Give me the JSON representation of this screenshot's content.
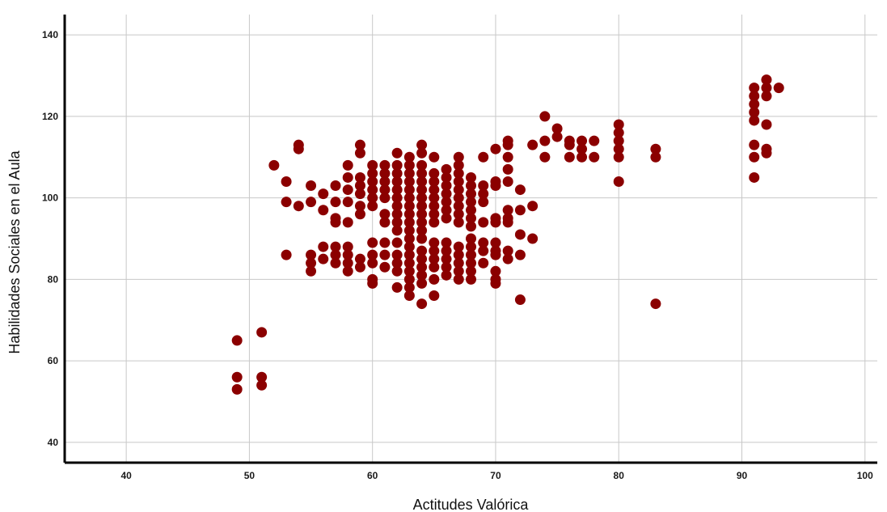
{
  "chart_data": {
    "type": "scatter",
    "title": "",
    "xlabel": "Actitudes Valórica",
    "ylabel": "Habilidades Sociales en el Aula",
    "xlim": [
      35,
      101
    ],
    "ylim": [
      35,
      145
    ],
    "xticks": [
      40,
      50,
      60,
      70,
      80,
      90,
      100
    ],
    "yticks": [
      40,
      60,
      80,
      100,
      120,
      140
    ],
    "grid": true,
    "legend": "none",
    "marker_color": "#8b0000",
    "series": [
      {
        "points": [
          [
            49,
            65
          ],
          [
            49,
            56
          ],
          [
            49,
            53
          ],
          [
            51,
            67
          ],
          [
            51,
            56
          ],
          [
            51,
            54
          ],
          [
            52,
            108
          ],
          [
            53,
            104
          ],
          [
            53,
            99
          ],
          [
            53,
            86
          ],
          [
            54,
            113
          ],
          [
            54,
            112
          ],
          [
            54,
            98
          ],
          [
            55,
            103
          ],
          [
            55,
            99
          ],
          [
            55,
            86
          ],
          [
            55,
            84
          ],
          [
            55,
            82
          ],
          [
            56,
            101
          ],
          [
            56,
            97
          ],
          [
            56,
            88
          ],
          [
            56,
            85
          ],
          [
            57,
            103
          ],
          [
            57,
            99
          ],
          [
            57,
            95
          ],
          [
            57,
            94
          ],
          [
            57,
            88
          ],
          [
            57,
            86
          ],
          [
            57,
            84
          ],
          [
            58,
            108
          ],
          [
            58,
            105
          ],
          [
            58,
            102
          ],
          [
            58,
            99
          ],
          [
            58,
            94
          ],
          [
            58,
            88
          ],
          [
            58,
            86
          ],
          [
            58,
            84
          ],
          [
            58,
            82
          ],
          [
            59,
            113
          ],
          [
            59,
            111
          ],
          [
            59,
            105
          ],
          [
            59,
            103
          ],
          [
            59,
            101
          ],
          [
            59,
            98
          ],
          [
            59,
            96
          ],
          [
            59,
            85
          ],
          [
            59,
            83
          ],
          [
            60,
            108
          ],
          [
            60,
            106
          ],
          [
            60,
            104
          ],
          [
            60,
            102
          ],
          [
            60,
            100
          ],
          [
            60,
            98
          ],
          [
            60,
            89
          ],
          [
            60,
            86
          ],
          [
            60,
            84
          ],
          [
            60,
            80
          ],
          [
            60,
            79
          ],
          [
            61,
            108
          ],
          [
            61,
            106
          ],
          [
            61,
            104
          ],
          [
            61,
            102
          ],
          [
            61,
            100
          ],
          [
            61,
            96
          ],
          [
            61,
            94
          ],
          [
            61,
            89
          ],
          [
            61,
            86
          ],
          [
            61,
            83
          ],
          [
            62,
            111
          ],
          [
            62,
            108
          ],
          [
            62,
            106
          ],
          [
            62,
            104
          ],
          [
            62,
            102
          ],
          [
            62,
            100
          ],
          [
            62,
            98
          ],
          [
            62,
            96
          ],
          [
            62,
            94
          ],
          [
            62,
            92
          ],
          [
            62,
            89
          ],
          [
            62,
            86
          ],
          [
            62,
            84
          ],
          [
            62,
            82
          ],
          [
            62,
            78
          ],
          [
            63,
            110
          ],
          [
            63,
            108
          ],
          [
            63,
            106
          ],
          [
            63,
            104
          ],
          [
            63,
            102
          ],
          [
            63,
            100
          ],
          [
            63,
            98
          ],
          [
            63,
            96
          ],
          [
            63,
            94
          ],
          [
            63,
            92
          ],
          [
            63,
            90
          ],
          [
            63,
            88
          ],
          [
            63,
            86
          ],
          [
            63,
            84
          ],
          [
            63,
            82
          ],
          [
            63,
            80
          ],
          [
            63,
            78
          ],
          [
            63,
            76
          ],
          [
            64,
            113
          ],
          [
            64,
            111
          ],
          [
            64,
            108
          ],
          [
            64,
            106
          ],
          [
            64,
            104
          ],
          [
            64,
            102
          ],
          [
            64,
            100
          ],
          [
            64,
            98
          ],
          [
            64,
            96
          ],
          [
            64,
            94
          ],
          [
            64,
            92
          ],
          [
            64,
            90
          ],
          [
            64,
            87
          ],
          [
            64,
            85
          ],
          [
            64,
            83
          ],
          [
            64,
            81
          ],
          [
            64,
            79
          ],
          [
            64,
            74
          ],
          [
            65,
            110
          ],
          [
            65,
            106
          ],
          [
            65,
            104
          ],
          [
            65,
            102
          ],
          [
            65,
            100
          ],
          [
            65,
            98
          ],
          [
            65,
            96
          ],
          [
            65,
            94
          ],
          [
            65,
            89
          ],
          [
            65,
            87
          ],
          [
            65,
            85
          ],
          [
            65,
            83
          ],
          [
            65,
            80
          ],
          [
            65,
            76
          ],
          [
            66,
            107
          ],
          [
            66,
            105
          ],
          [
            66,
            103
          ],
          [
            66,
            101
          ],
          [
            66,
            99
          ],
          [
            66,
            97
          ],
          [
            66,
            95
          ],
          [
            66,
            89
          ],
          [
            66,
            87
          ],
          [
            66,
            85
          ],
          [
            66,
            83
          ],
          [
            66,
            81
          ],
          [
            67,
            110
          ],
          [
            67,
            108
          ],
          [
            67,
            106
          ],
          [
            67,
            104
          ],
          [
            67,
            102
          ],
          [
            67,
            100
          ],
          [
            67,
            98
          ],
          [
            67,
            96
          ],
          [
            67,
            94
          ],
          [
            67,
            88
          ],
          [
            67,
            86
          ],
          [
            67,
            84
          ],
          [
            67,
            82
          ],
          [
            67,
            80
          ],
          [
            68,
            105
          ],
          [
            68,
            103
          ],
          [
            68,
            101
          ],
          [
            68,
            99
          ],
          [
            68,
            97
          ],
          [
            68,
            95
          ],
          [
            68,
            93
          ],
          [
            68,
            90
          ],
          [
            68,
            88
          ],
          [
            68,
            86
          ],
          [
            68,
            84
          ],
          [
            68,
            82
          ],
          [
            68,
            80
          ],
          [
            69,
            110
          ],
          [
            69,
            103
          ],
          [
            69,
            101
          ],
          [
            69,
            99
          ],
          [
            69,
            94
          ],
          [
            69,
            89
          ],
          [
            69,
            87
          ],
          [
            69,
            84
          ],
          [
            70,
            112
          ],
          [
            70,
            104
          ],
          [
            70,
            103
          ],
          [
            70,
            95
          ],
          [
            70,
            94
          ],
          [
            70,
            89
          ],
          [
            70,
            87
          ],
          [
            70,
            86
          ],
          [
            70,
            82
          ],
          [
            70,
            80
          ],
          [
            70,
            79
          ],
          [
            71,
            114
          ],
          [
            71,
            113
          ],
          [
            71,
            110
          ],
          [
            71,
            107
          ],
          [
            71,
            104
          ],
          [
            71,
            97
          ],
          [
            71,
            95
          ],
          [
            71,
            94
          ],
          [
            71,
            87
          ],
          [
            71,
            85
          ],
          [
            72,
            102
          ],
          [
            72,
            97
          ],
          [
            72,
            91
          ],
          [
            72,
            86
          ],
          [
            72,
            75
          ],
          [
            73,
            113
          ],
          [
            73,
            98
          ],
          [
            73,
            90
          ],
          [
            74,
            120
          ],
          [
            74,
            114
          ],
          [
            74,
            110
          ],
          [
            75,
            117
          ],
          [
            75,
            115
          ],
          [
            76,
            114
          ],
          [
            76,
            113
          ],
          [
            76,
            110
          ],
          [
            77,
            114
          ],
          [
            77,
            112
          ],
          [
            77,
            110
          ],
          [
            78,
            114
          ],
          [
            78,
            110
          ],
          [
            80,
            118
          ],
          [
            80,
            116
          ],
          [
            80,
            114
          ],
          [
            80,
            112
          ],
          [
            80,
            110
          ],
          [
            80,
            104
          ],
          [
            83,
            112
          ],
          [
            83,
            110
          ],
          [
            83,
            74
          ],
          [
            91,
            127
          ],
          [
            91,
            125
          ],
          [
            91,
            123
          ],
          [
            91,
            121
          ],
          [
            91,
            119
          ],
          [
            91,
            113
          ],
          [
            91,
            110
          ],
          [
            91,
            105
          ],
          [
            92,
            129
          ],
          [
            92,
            127
          ],
          [
            92,
            125
          ],
          [
            92,
            118
          ],
          [
            92,
            112
          ],
          [
            92,
            111
          ],
          [
            93,
            127
          ]
        ]
      }
    ]
  }
}
